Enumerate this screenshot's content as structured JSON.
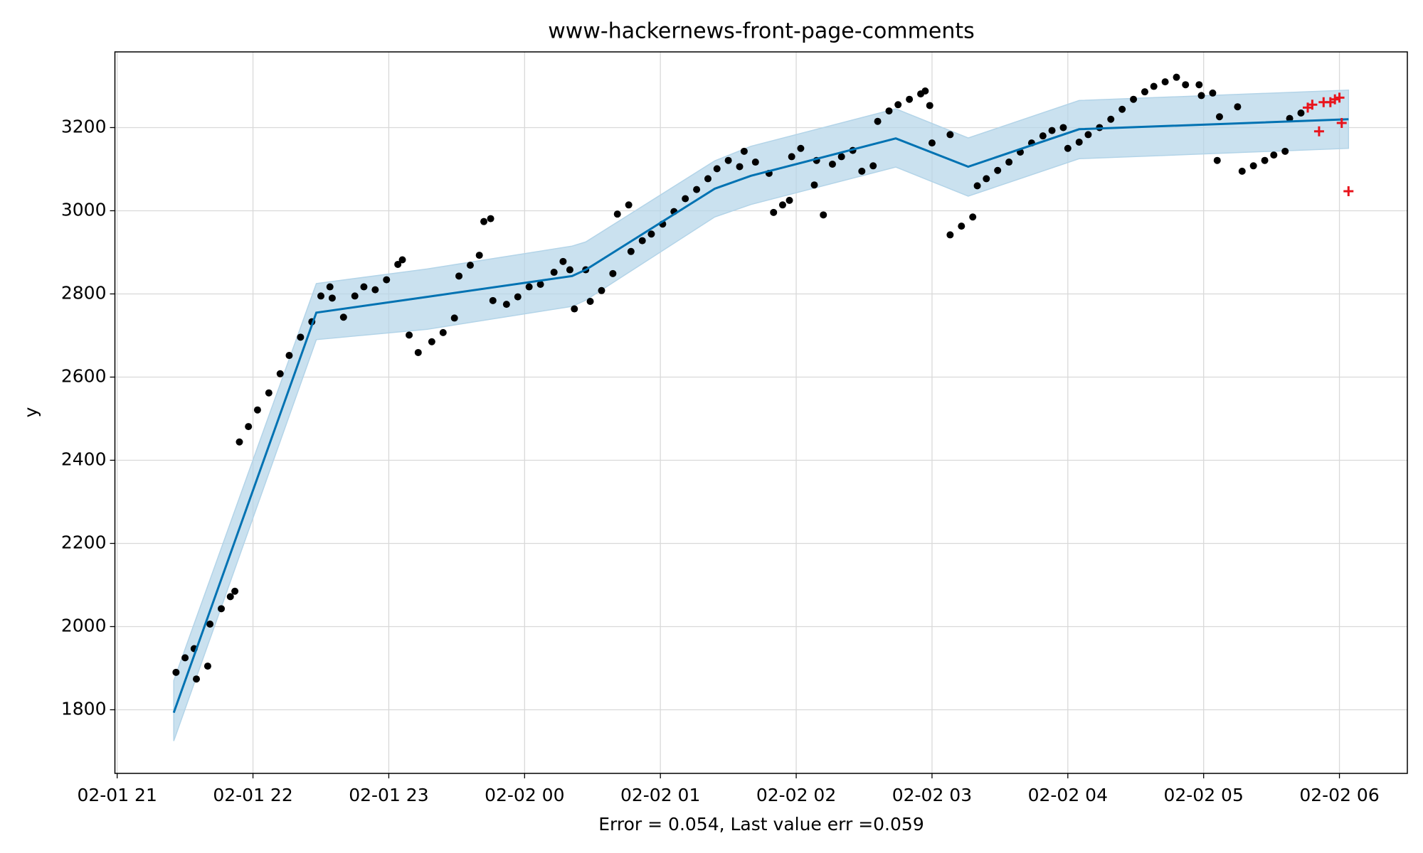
{
  "chart_data": {
    "type": "line",
    "title": "www-hackernews-front-page-comments",
    "x_label": "Error = 0.054, Last value err =0.059",
    "y_label": "y",
    "grid": true,
    "xlim": [
      "02-01 20:59",
      "02-02 06:30"
    ],
    "ylim": [
      1647,
      3382
    ],
    "xticks": [
      {
        "value": "02-01 21:00",
        "label": "02-01 21"
      },
      {
        "value": "02-01 22:00",
        "label": "02-01 22"
      },
      {
        "value": "02-01 23:00",
        "label": "02-01 23"
      },
      {
        "value": "02-02 00:00",
        "label": "02-02 00"
      },
      {
        "value": "02-02 01:00",
        "label": "02-02 01"
      },
      {
        "value": "02-02 02:00",
        "label": "02-02 02"
      },
      {
        "value": "02-02 03:00",
        "label": "02-02 03"
      },
      {
        "value": "02-02 04:00",
        "label": "02-02 04"
      },
      {
        "value": "02-02 05:00",
        "label": "02-02 05"
      },
      {
        "value": "02-02 06:00",
        "label": "02-02 06"
      }
    ],
    "yticks": [
      1800,
      2000,
      2200,
      2400,
      2600,
      2800,
      3000,
      3200
    ],
    "forecast": {
      "color": "#0072b2",
      "band_color": "#b3d4e8",
      "x": [
        "02-01 21:25",
        "02-01 22:28",
        "02-01 23:17",
        "02-02 00:21",
        "02-02 00:27",
        "02-02 01:24",
        "02-02 01:40",
        "02-02 02:44",
        "02-02 03:16",
        "02-02 04:05",
        "02-02 06:04"
      ],
      "values": [
        1793,
        2755,
        2793,
        2843,
        2858,
        3053,
        3084,
        3174,
        3106,
        3196,
        3220
      ],
      "lower": [
        1725,
        2690,
        2715,
        2770,
        2785,
        2985,
        3015,
        3105,
        3035,
        3125,
        3150
      ],
      "upper": [
        1870,
        2825,
        2860,
        2915,
        2925,
        3120,
        3155,
        3245,
        3175,
        3265,
        3290
      ]
    },
    "observed": {
      "color": "#000000",
      "x": [
        "02-01 21:26",
        "02-01 21:30",
        "02-01 21:34",
        "02-01 21:35",
        "02-01 21:40",
        "02-01 21:41",
        "02-01 21:46",
        "02-01 21:50",
        "02-01 21:52",
        "02-01 21:54",
        "02-01 21:58",
        "02-01 22:02",
        "02-01 22:07",
        "02-01 22:12",
        "02-01 22:16",
        "02-01 22:21",
        "02-01 22:26",
        "02-01 22:30",
        "02-01 22:34",
        "02-01 22:35",
        "02-01 22:40",
        "02-01 22:45",
        "02-01 22:49",
        "02-01 22:54",
        "02-01 22:59",
        "02-01 23:04",
        "02-01 23:06",
        "02-01 23:09",
        "02-01 23:13",
        "02-01 23:19",
        "02-01 23:24",
        "02-01 23:29",
        "02-01 23:31",
        "02-01 23:36",
        "02-01 23:40",
        "02-01 23:42",
        "02-01 23:45",
        "02-01 23:46",
        "02-01 23:52",
        "02-01 23:57",
        "02-02 00:02",
        "02-02 00:07",
        "02-02 00:13",
        "02-02 00:17",
        "02-02 00:20",
        "02-02 00:22",
        "02-02 00:27",
        "02-02 00:29",
        "02-02 00:34",
        "02-02 00:39",
        "02-02 00:41",
        "02-02 00:46",
        "02-02 00:47",
        "02-02 00:52",
        "02-02 00:56",
        "02-02 01:01",
        "02-02 01:06",
        "02-02 01:11",
        "02-02 01:16",
        "02-02 01:21",
        "02-02 01:25",
        "02-02 01:30",
        "02-02 01:35",
        "02-02 01:37",
        "02-02 01:42",
        "02-02 01:48",
        "02-02 01:50",
        "02-02 01:54",
        "02-02 01:57",
        "02-02 01:58",
        "02-02 02:02",
        "02-02 02:08",
        "02-02 02:09",
        "02-02 02:12",
        "02-02 02:16",
        "02-02 02:20",
        "02-02 02:25",
        "02-02 02:29",
        "02-02 02:34",
        "02-02 02:36",
        "02-02 02:41",
        "02-02 02:45",
        "02-02 02:50",
        "02-02 02:55",
        "02-02 02:57",
        "02-02 02:59",
        "02-02 03:00",
        "02-02 03:08",
        "02-02 03:08",
        "02-02 03:13",
        "02-02 03:18",
        "02-02 03:20",
        "02-02 03:24",
        "02-02 03:29",
        "02-02 03:34",
        "02-02 03:39",
        "02-02 03:44",
        "02-02 03:49",
        "02-02 03:53",
        "02-02 03:58",
        "02-02 04:00",
        "02-02 04:05",
        "02-02 04:09",
        "02-02 04:14",
        "02-02 04:19",
        "02-02 04:24",
        "02-02 04:29",
        "02-02 04:34",
        "02-02 04:38",
        "02-02 04:43",
        "02-02 04:48",
        "02-02 04:52",
        "02-02 04:58",
        "02-02 04:59",
        "02-02 05:04",
        "02-02 05:06",
        "02-02 05:07",
        "02-02 05:15",
        "02-02 05:17",
        "02-02 05:22",
        "02-02 05:27",
        "02-02 05:31",
        "02-02 05:36",
        "02-02 05:38",
        "02-02 05:43"
      ],
      "values": [
        1890,
        1925,
        1947,
        1874,
        1905,
        2006,
        2043,
        2072,
        2085,
        2444,
        2481,
        2521,
        2562,
        2608,
        2652,
        2696,
        2733,
        2795,
        2817,
        2790,
        2744,
        2795,
        2817,
        2810,
        2834,
        2871,
        2882,
        2701,
        2659,
        2685,
        2707,
        2742,
        2843,
        2869,
        2893,
        2974,
        2981,
        2784,
        2775,
        2793,
        2817,
        2823,
        2852,
        2878,
        2858,
        2764,
        2858,
        2782,
        2808,
        2849,
        2992,
        3014,
        2902,
        2928,
        2944,
        2968,
        2998,
        3029,
        3051,
        3077,
        3101,
        3121,
        3106,
        3143,
        3117,
        3090,
        2996,
        3014,
        3025,
        3130,
        3150,
        3062,
        3121,
        2990,
        3112,
        3130,
        3145,
        3095,
        3108,
        3215,
        3240,
        3255,
        3268,
        3281,
        3288,
        3253,
        3163,
        3183,
        2942,
        2963,
        2985,
        3060,
        3077,
        3097,
        3117,
        3141,
        3163,
        3180,
        3193,
        3200,
        3150,
        3165,
        3183,
        3200,
        3220,
        3244,
        3268,
        3286,
        3299,
        3310,
        3321,
        3303,
        3303,
        3277,
        3283,
        3121,
        3226,
        3250,
        3095,
        3108,
        3121,
        3134,
        3143,
        3222,
        3235
      ]
    },
    "future": {
      "color": "#e8141c",
      "x": [
        "02-02 05:46",
        "02-02 05:48",
        "02-02 05:51",
        "02-02 05:53",
        "02-02 05:56",
        "02-02 05:58",
        "02-02 06:00",
        "02-02 06:01",
        "02-02 06:04"
      ],
      "values": [
        3248,
        3255,
        3191,
        3261,
        3261,
        3268,
        3272,
        3211,
        3047
      ]
    }
  }
}
